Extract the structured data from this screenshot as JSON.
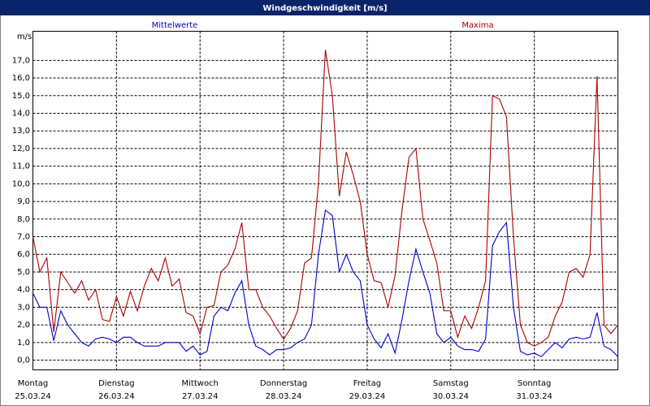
{
  "chart_data": {
    "type": "line",
    "title": "Windgeschwindigkeit [m/s]",
    "y_unit": "m/s",
    "x": [
      0,
      2,
      4,
      6,
      8,
      10,
      12,
      14,
      16,
      18,
      20,
      22,
      24,
      26,
      28,
      30,
      32,
      34,
      36,
      38,
      40,
      42,
      44,
      46,
      48,
      50,
      52,
      54,
      56,
      58,
      60,
      62,
      64,
      66,
      68,
      70,
      72,
      74,
      76,
      78,
      80,
      82,
      84,
      86,
      88,
      90,
      92,
      94,
      96,
      98,
      100,
      102,
      104,
      106,
      108,
      110,
      112,
      114,
      116,
      118,
      120,
      122,
      124,
      126,
      128,
      130,
      132,
      134,
      136,
      138,
      140,
      142,
      144,
      146,
      148,
      150,
      152,
      154,
      156,
      158,
      160,
      162,
      164,
      166,
      168
    ],
    "series": [
      {
        "name": "Mittelwerte",
        "color": "#0000cc",
        "values": [
          3.8,
          3.0,
          3.0,
          1.1,
          2.8,
          2.0,
          1.5,
          1.0,
          0.8,
          1.2,
          1.3,
          1.2,
          1.0,
          1.3,
          1.3,
          1.0,
          0.8,
          0.8,
          0.8,
          1.0,
          1.0,
          1.0,
          0.5,
          0.8,
          0.3,
          0.5,
          2.5,
          3.0,
          2.8,
          3.8,
          4.5,
          2.0,
          0.8,
          0.6,
          0.3,
          0.6,
          0.6,
          0.7,
          1.0,
          1.2,
          2.0,
          6.0,
          8.5,
          8.2,
          5.0,
          6.0,
          5.0,
          4.5,
          2.0,
          1.2,
          0.7,
          1.5,
          0.4,
          2.3,
          4.5,
          6.3,
          5.0,
          3.8,
          1.5,
          1.0,
          1.3,
          0.8,
          0.6,
          0.6,
          0.5,
          1.2,
          6.5,
          7.3,
          7.8,
          3.0,
          0.5,
          0.3,
          0.4,
          0.2,
          0.6,
          1.0,
          0.7,
          1.2,
          1.3,
          1.2,
          1.3,
          2.7,
          0.8,
          0.6,
          0.2
        ]
      },
      {
        "name": "Maxima",
        "color": "#aa0000",
        "values": [
          7.0,
          5.0,
          5.8,
          1.6,
          5.0,
          4.4,
          3.8,
          4.5,
          3.4,
          4.0,
          2.3,
          2.2,
          3.6,
          2.5,
          3.9,
          2.8,
          4.2,
          5.2,
          4.5,
          5.8,
          4.2,
          4.6,
          2.7,
          2.5,
          1.5,
          3.0,
          3.1,
          5.0,
          5.4,
          6.3,
          7.8,
          4.0,
          4.0,
          3.0,
          2.5,
          1.8,
          1.2,
          1.8,
          2.8,
          5.5,
          5.8,
          10.0,
          17.6,
          15.0,
          9.3,
          11.8,
          10.5,
          9.0,
          6.0,
          4.5,
          4.4,
          3.0,
          4.8,
          8.5,
          11.5,
          12.0,
          8.0,
          6.8,
          5.5,
          2.8,
          2.8,
          1.3,
          2.5,
          1.8,
          3.0,
          4.5,
          15.0,
          14.8,
          13.8,
          7.0,
          2.0,
          1.0,
          0.8,
          1.0,
          1.3,
          2.5,
          3.3,
          5.0,
          5.2,
          4.7,
          6.0,
          16.1,
          2.0,
          1.5,
          2.0
        ]
      }
    ],
    "xlim": [
      0,
      168
    ],
    "xticks": [
      {
        "value": 0,
        "label": "Montag"
      },
      {
        "value": 24,
        "label": "Dienstag"
      },
      {
        "value": 48,
        "label": "Mittwoch"
      },
      {
        "value": 72,
        "label": "Donnerstag"
      },
      {
        "value": 96,
        "label": "Freitag"
      },
      {
        "value": 120,
        "label": "Samstag"
      },
      {
        "value": 144,
        "label": "Sonntag"
      }
    ],
    "xtick_dates": [
      "25.03.24",
      "26.03.24",
      "27.03.24",
      "28.03.24",
      "29.03.24",
      "30.03.24",
      "31.03.24"
    ],
    "ylim": [
      -0.55,
      18.65
    ],
    "yticks": [
      {
        "value": 0,
        "label": "0,0"
      },
      {
        "value": 1,
        "label": "1,0"
      },
      {
        "value": 2,
        "label": "2,0"
      },
      {
        "value": 3,
        "label": "3,0"
      },
      {
        "value": 4,
        "label": "4,0"
      },
      {
        "value": 5,
        "label": "5,0"
      },
      {
        "value": 6,
        "label": "6,0"
      },
      {
        "value": 7,
        "label": "7,0"
      },
      {
        "value": 8,
        "label": "8,0"
      },
      {
        "value": 9,
        "label": "9,0"
      },
      {
        "value": 10,
        "label": "10,0"
      },
      {
        "value": 11,
        "label": "11,0"
      },
      {
        "value": 12,
        "label": "12,0"
      },
      {
        "value": 13,
        "label": "13,0"
      },
      {
        "value": 14,
        "label": "14,0"
      },
      {
        "value": 15,
        "label": "15,0"
      },
      {
        "value": 16,
        "label": "16,0"
      },
      {
        "value": 17,
        "label": "17,0"
      }
    ],
    "grid": true
  }
}
